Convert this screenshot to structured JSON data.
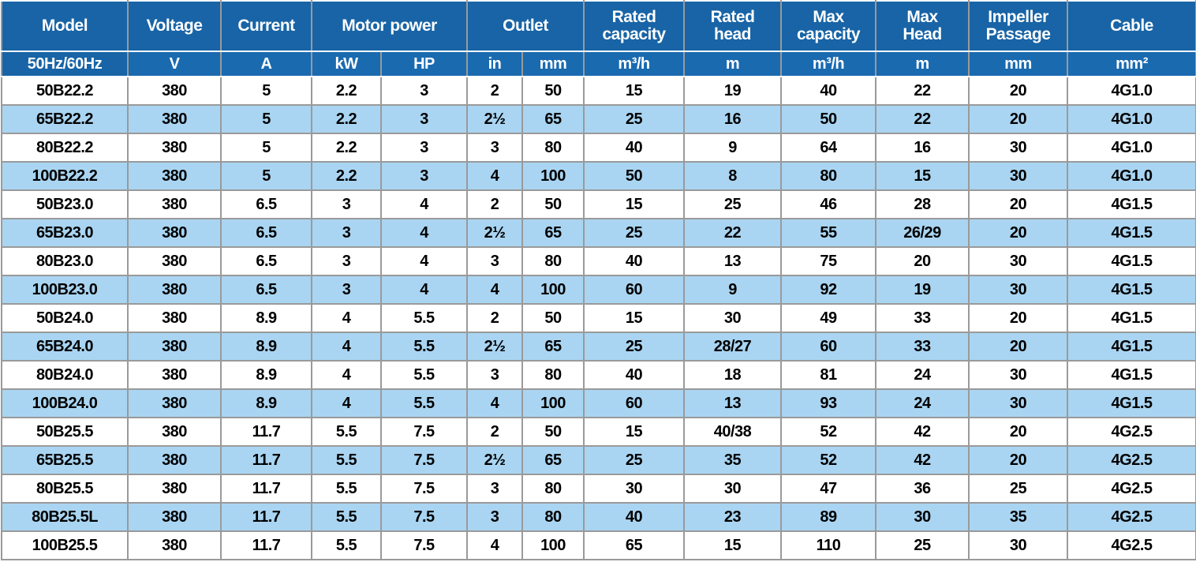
{
  "table": {
    "header": [
      {
        "label": "Model",
        "units": [
          "50Hz/60Hz"
        ]
      },
      {
        "label": "Voltage",
        "units": [
          "V"
        ]
      },
      {
        "label": "Current",
        "units": [
          "A"
        ]
      },
      {
        "label": "Motor power",
        "units": [
          "kW",
          "HP"
        ]
      },
      {
        "label": "Outlet",
        "units": [
          "in",
          "mm"
        ]
      },
      {
        "label": "Rated\ncapacity",
        "units": [
          "m³/h"
        ]
      },
      {
        "label": "Rated\nhead",
        "units": [
          "m"
        ]
      },
      {
        "label": "Max\ncapacity",
        "units": [
          "m³/h"
        ]
      },
      {
        "label": "Max\nHead",
        "units": [
          "m"
        ]
      },
      {
        "label": "Impeller\nPassage",
        "units": [
          "mm"
        ]
      },
      {
        "label": "Cable",
        "units": [
          "mm²"
        ]
      }
    ],
    "rows": [
      [
        "50B22.2",
        "380",
        "5",
        "2.2",
        "3",
        "2",
        "50",
        "15",
        "19",
        "40",
        "22",
        "20",
        "4G1.0"
      ],
      [
        "65B22.2",
        "380",
        "5",
        "2.2",
        "3",
        "2½",
        "65",
        "25",
        "16",
        "50",
        "22",
        "20",
        "4G1.0"
      ],
      [
        "80B22.2",
        "380",
        "5",
        "2.2",
        "3",
        "3",
        "80",
        "40",
        "9",
        "64",
        "16",
        "30",
        "4G1.0"
      ],
      [
        "100B22.2",
        "380",
        "5",
        "2.2",
        "3",
        "4",
        "100",
        "50",
        "8",
        "80",
        "15",
        "30",
        "4G1.0"
      ],
      [
        "50B23.0",
        "380",
        "6.5",
        "3",
        "4",
        "2",
        "50",
        "15",
        "25",
        "46",
        "28",
        "20",
        "4G1.5"
      ],
      [
        "65B23.0",
        "380",
        "6.5",
        "3",
        "4",
        "2½",
        "65",
        "25",
        "22",
        "55",
        "26/29",
        "20",
        "4G1.5"
      ],
      [
        "80B23.0",
        "380",
        "6.5",
        "3",
        "4",
        "3",
        "80",
        "40",
        "13",
        "75",
        "20",
        "30",
        "4G1.5"
      ],
      [
        "100B23.0",
        "380",
        "6.5",
        "3",
        "4",
        "4",
        "100",
        "60",
        "9",
        "92",
        "19",
        "30",
        "4G1.5"
      ],
      [
        "50B24.0",
        "380",
        "8.9",
        "4",
        "5.5",
        "2",
        "50",
        "15",
        "30",
        "49",
        "33",
        "20",
        "4G1.5"
      ],
      [
        "65B24.0",
        "380",
        "8.9",
        "4",
        "5.5",
        "2½",
        "65",
        "25",
        "28/27",
        "60",
        "33",
        "20",
        "4G1.5"
      ],
      [
        "80B24.0",
        "380",
        "8.9",
        "4",
        "5.5",
        "3",
        "80",
        "40",
        "18",
        "81",
        "24",
        "30",
        "4G1.5"
      ],
      [
        "100B24.0",
        "380",
        "8.9",
        "4",
        "5.5",
        "4",
        "100",
        "60",
        "13",
        "93",
        "24",
        "30",
        "4G1.5"
      ],
      [
        "50B25.5",
        "380",
        "11.7",
        "5.5",
        "7.5",
        "2",
        "50",
        "15",
        "40/38",
        "52",
        "42",
        "20",
        "4G2.5"
      ],
      [
        "65B25.5",
        "380",
        "11.7",
        "5.5",
        "7.5",
        "2½",
        "65",
        "25",
        "35",
        "52",
        "42",
        "20",
        "4G2.5"
      ],
      [
        "80B25.5",
        "380",
        "11.7",
        "5.5",
        "7.5",
        "3",
        "80",
        "30",
        "30",
        "47",
        "36",
        "25",
        "4G2.5"
      ],
      [
        "80B25.5L",
        "380",
        "11.7",
        "5.5",
        "7.5",
        "3",
        "80",
        "40",
        "23",
        "89",
        "30",
        "35",
        "4G2.5"
      ],
      [
        "100B25.5",
        "380",
        "11.7",
        "5.5",
        "7.5",
        "4",
        "100",
        "65",
        "15",
        "110",
        "25",
        "30",
        "4G2.5"
      ]
    ]
  }
}
